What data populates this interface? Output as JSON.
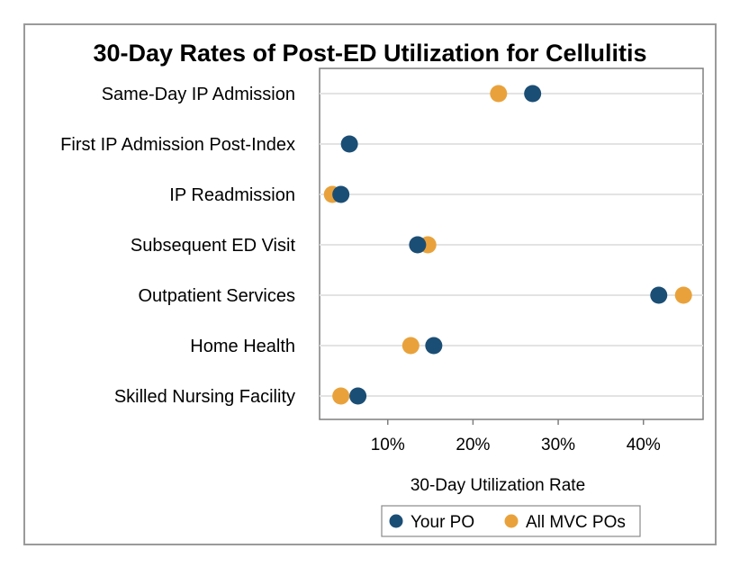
{
  "chart_data": {
    "type": "scatter",
    "title": "30-Day Rates of Post-ED Utilization for Cellulitis",
    "xlabel": "30-Day Utilization Rate",
    "ylabel": "",
    "xlim": [
      2,
      47
    ],
    "x_ticks": [
      10,
      20,
      30,
      40
    ],
    "x_tick_labels": [
      "10%",
      "20%",
      "30%",
      "40%"
    ],
    "categories": [
      "Same-Day IP Admission",
      "First IP Admission Post-Index",
      "IP Readmission",
      "Subsequent ED Visit",
      "Outpatient Services",
      "Home Health",
      "Skilled Nursing Facility"
    ],
    "series": [
      {
        "name": "Your PO",
        "color": "#1b4e75",
        "values": [
          27,
          5.5,
          4.5,
          13.5,
          41.8,
          15.4,
          6.5
        ]
      },
      {
        "name": "All MVC POs",
        "color": "#e9a23b",
        "values": [
          23,
          null,
          3.5,
          14.7,
          44.7,
          12.7,
          4.5
        ]
      }
    ],
    "grid": "horizontal",
    "legend_position": "bottom"
  }
}
